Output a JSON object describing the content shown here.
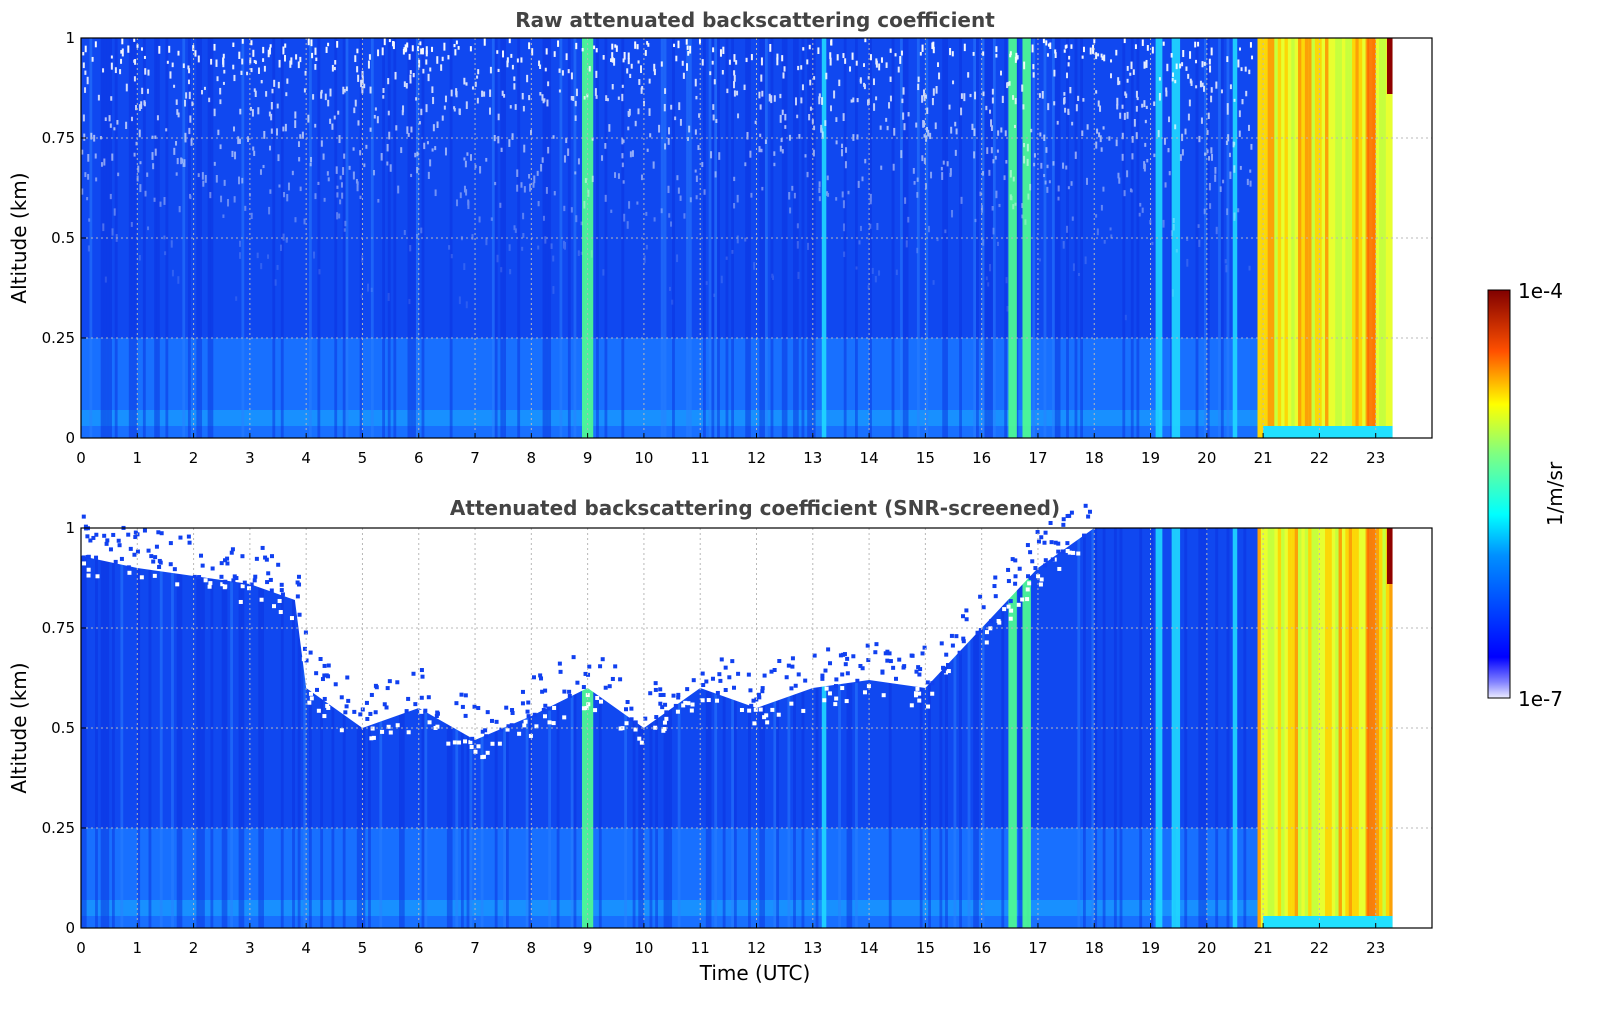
{
  "chart_data": [
    {
      "type": "heatmap",
      "title": "Raw attenuated backscattering coefficient",
      "xlabel": "",
      "ylabel": "Altitude (km)",
      "xlim": [
        0,
        24
      ],
      "ylim": [
        0,
        1
      ],
      "xticks": [
        "0",
        "1",
        "2",
        "3",
        "4",
        "5",
        "6",
        "7",
        "8",
        "9",
        "10",
        "11",
        "12",
        "13",
        "14",
        "15",
        "16",
        "17",
        "18",
        "19",
        "20",
        "21",
        "22",
        "23"
      ],
      "yticks": [
        "0",
        "0.25",
        "0.5",
        "0.75",
        "1"
      ],
      "grid": true,
      "data_end_time": 23.3,
      "background_level": "blue (~1e-6)",
      "noisy_upper_region": true,
      "strong_columns": [
        {
          "time": 9.0,
          "width": 0.2,
          "level": "green"
        },
        {
          "time": 13.2,
          "width": 0.08,
          "level": "cyan"
        },
        {
          "time": 16.55,
          "width": 0.15,
          "level": "green"
        },
        {
          "time": 16.8,
          "width": 0.15,
          "level": "green"
        },
        {
          "time": 19.15,
          "width": 0.12,
          "level": "cyan"
        },
        {
          "time": 19.45,
          "width": 0.15,
          "level": "cyan"
        },
        {
          "time": 20.5,
          "width": 0.08,
          "level": "cyan"
        }
      ],
      "high_signal_period": {
        "start": 20.9,
        "end": 23.3,
        "level": "yellow-red"
      }
    },
    {
      "type": "heatmap",
      "title": "Attenuated backscattering coefficient (SNR-screened)",
      "xlabel": "Time (UTC)",
      "ylabel": "Altitude (km)",
      "xlim": [
        0,
        24
      ],
      "ylim": [
        0,
        1
      ],
      "xticks": [
        "0",
        "1",
        "2",
        "3",
        "4",
        "5",
        "6",
        "7",
        "8",
        "9",
        "10",
        "11",
        "12",
        "13",
        "14",
        "15",
        "16",
        "17",
        "18",
        "19",
        "20",
        "21",
        "22",
        "23"
      ],
      "yticks": [
        "0",
        "0.25",
        "0.5",
        "0.75",
        "1"
      ],
      "grid": true,
      "data_end_time": 23.3,
      "screened_top_profile": [
        {
          "time": 0,
          "alt": 0.93
        },
        {
          "time": 1,
          "alt": 0.9
        },
        {
          "time": 2,
          "alt": 0.88
        },
        {
          "time": 3,
          "alt": 0.86
        },
        {
          "time": 3.8,
          "alt": 0.82
        },
        {
          "time": 4,
          "alt": 0.6
        },
        {
          "time": 5,
          "alt": 0.5
        },
        {
          "time": 6,
          "alt": 0.55
        },
        {
          "time": 7,
          "alt": 0.47
        },
        {
          "time": 8,
          "alt": 0.53
        },
        {
          "time": 9,
          "alt": 0.6
        },
        {
          "time": 10,
          "alt": 0.5
        },
        {
          "time": 11,
          "alt": 0.6
        },
        {
          "time": 12,
          "alt": 0.55
        },
        {
          "time": 13,
          "alt": 0.6
        },
        {
          "time": 14,
          "alt": 0.62
        },
        {
          "time": 15,
          "alt": 0.6
        },
        {
          "time": 16,
          "alt": 0.75
        },
        {
          "time": 17,
          "alt": 0.9
        },
        {
          "time": 18,
          "alt": 1.0
        },
        {
          "time": 23.3,
          "alt": 1.0
        }
      ]
    }
  ],
  "colorbar": {
    "label": "1/m/sr",
    "max_label": "1e-4",
    "min_label": "1e-7",
    "colormap": "jet"
  }
}
